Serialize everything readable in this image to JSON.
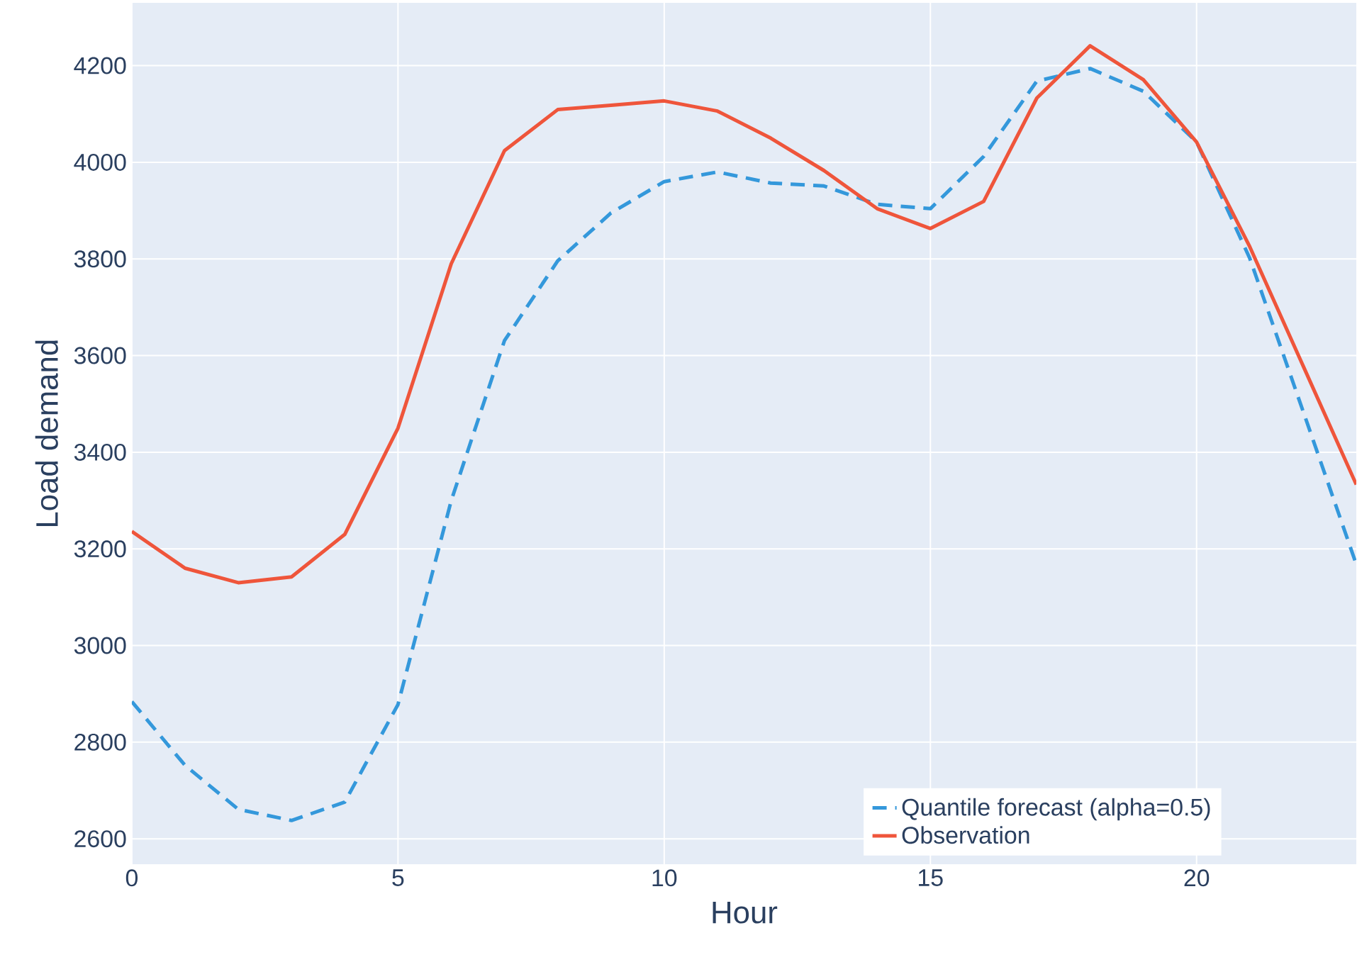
{
  "chart_data": {
    "type": "line",
    "xlabel": "Hour",
    "ylabel": "Load demand",
    "x": [
      0,
      1,
      2,
      3,
      4,
      5,
      6,
      7,
      8,
      9,
      10,
      11,
      12,
      13,
      14,
      15,
      16,
      17,
      18,
      19,
      20,
      21,
      22,
      23
    ],
    "series": [
      {
        "name": "Quantile forecast (alpha=0.5)",
        "color": "#3498db",
        "line_style": "dashed",
        "values": [
          2884,
          2752,
          2661,
          2638,
          2676,
          2878,
          3300,
          3631,
          3796,
          3895,
          3960,
          3980,
          3957,
          3951,
          3913,
          3904,
          4012,
          4168,
          4194,
          4147,
          4042,
          3801,
          3485,
          3168
        ]
      },
      {
        "name": "Observation",
        "color": "#ef553b",
        "line_style": "solid",
        "values": [
          3236,
          3160,
          3130,
          3142,
          3230,
          3450,
          3790,
          4024,
          4109,
          4118,
          4127,
          4106,
          4050,
          3983,
          3904,
          3863,
          3919,
          4133,
          4241,
          4171,
          4042,
          3825,
          3579,
          3333
        ]
      }
    ],
    "xlim": [
      0,
      23
    ],
    "ylim": [
      2547,
      4330
    ],
    "xticks": [
      0,
      5,
      10,
      15,
      20
    ],
    "yticks": [
      2600,
      2800,
      3000,
      3200,
      3400,
      3600,
      3800,
      4000,
      4200
    ],
    "grid": true,
    "legend": "bottom right"
  }
}
